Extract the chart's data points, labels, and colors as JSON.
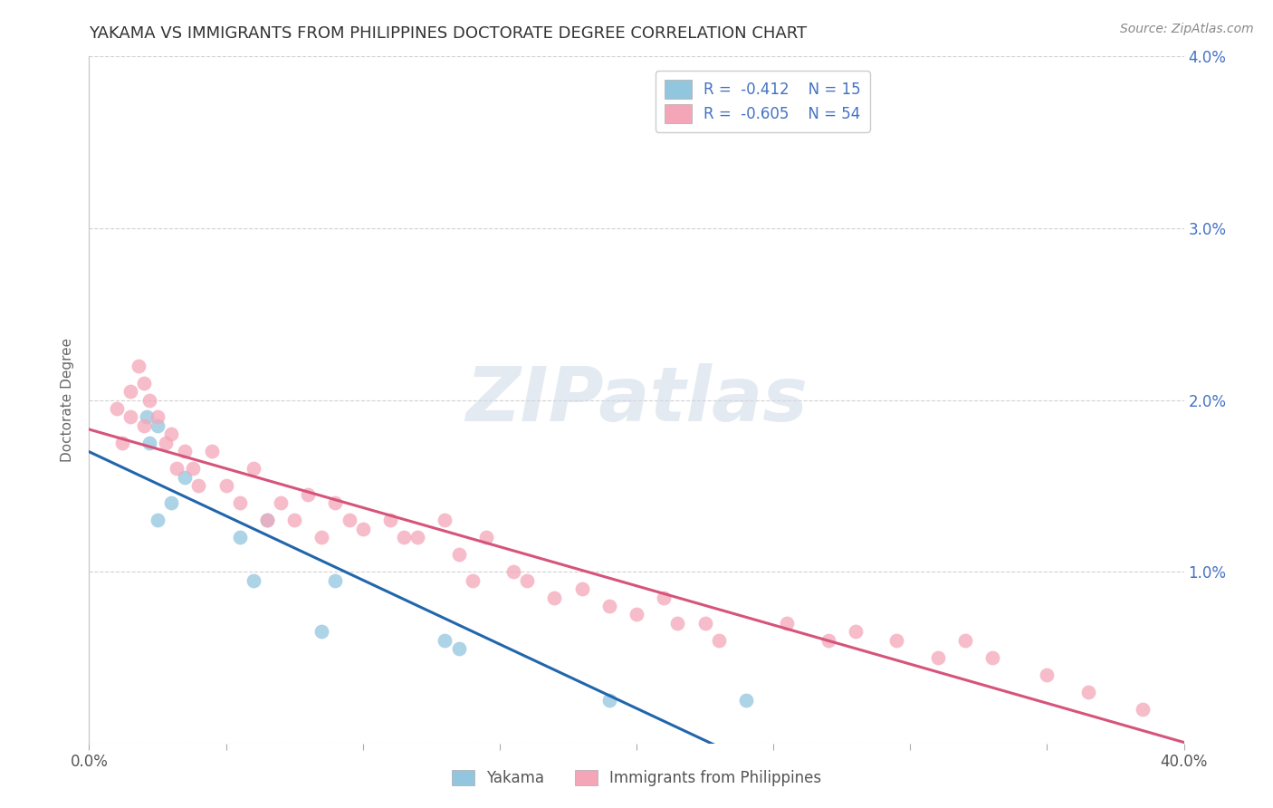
{
  "title": "YAKAMA VS IMMIGRANTS FROM PHILIPPINES DOCTORATE DEGREE CORRELATION CHART",
  "source": "Source: ZipAtlas.com",
  "xlabel_label": "Yakama",
  "ylabel_label": "Immigrants from Philippines",
  "ylabel": "Doctorate Degree",
  "xlim": [
    0.0,
    0.4
  ],
  "ylim": [
    0.0,
    0.04
  ],
  "legend_r1": "R =  -0.412",
  "legend_n1": "N = 15",
  "legend_r2": "R =  -0.605",
  "legend_n2": "N = 54",
  "color_blue": "#92c5de",
  "color_pink": "#f4a6b8",
  "line_color_blue": "#2166ac",
  "line_color_pink": "#d6547a",
  "watermark_color": "#d3dce8",
  "title_color": "#333333",
  "grid_color": "#cccccc",
  "right_tick_color": "#4472c4",
  "yakama_x": [
    0.021,
    0.022,
    0.025,
    0.025,
    0.03,
    0.035,
    0.055,
    0.06,
    0.065,
    0.085,
    0.09,
    0.13,
    0.135,
    0.19,
    0.24
  ],
  "yakama_y": [
    0.019,
    0.0175,
    0.0185,
    0.013,
    0.014,
    0.0155,
    0.012,
    0.0095,
    0.013,
    0.0065,
    0.0095,
    0.006,
    0.0055,
    0.0025,
    0.0025
  ],
  "philippines_x": [
    0.01,
    0.012,
    0.015,
    0.015,
    0.018,
    0.02,
    0.02,
    0.022,
    0.025,
    0.028,
    0.03,
    0.032,
    0.035,
    0.038,
    0.04,
    0.045,
    0.05,
    0.055,
    0.06,
    0.065,
    0.07,
    0.075,
    0.08,
    0.085,
    0.09,
    0.095,
    0.1,
    0.11,
    0.115,
    0.12,
    0.13,
    0.135,
    0.14,
    0.145,
    0.155,
    0.16,
    0.17,
    0.18,
    0.19,
    0.2,
    0.21,
    0.215,
    0.225,
    0.23,
    0.255,
    0.27,
    0.28,
    0.295,
    0.31,
    0.32,
    0.33,
    0.35,
    0.365,
    0.385
  ],
  "philippines_y": [
    0.0195,
    0.0175,
    0.0205,
    0.019,
    0.022,
    0.0185,
    0.021,
    0.02,
    0.019,
    0.0175,
    0.018,
    0.016,
    0.017,
    0.016,
    0.015,
    0.017,
    0.015,
    0.014,
    0.016,
    0.013,
    0.014,
    0.013,
    0.0145,
    0.012,
    0.014,
    0.013,
    0.0125,
    0.013,
    0.012,
    0.012,
    0.013,
    0.011,
    0.0095,
    0.012,
    0.01,
    0.0095,
    0.0085,
    0.009,
    0.008,
    0.0075,
    0.0085,
    0.007,
    0.007,
    0.006,
    0.007,
    0.006,
    0.0065,
    0.006,
    0.005,
    0.006,
    0.005,
    0.004,
    0.003,
    0.002
  ]
}
